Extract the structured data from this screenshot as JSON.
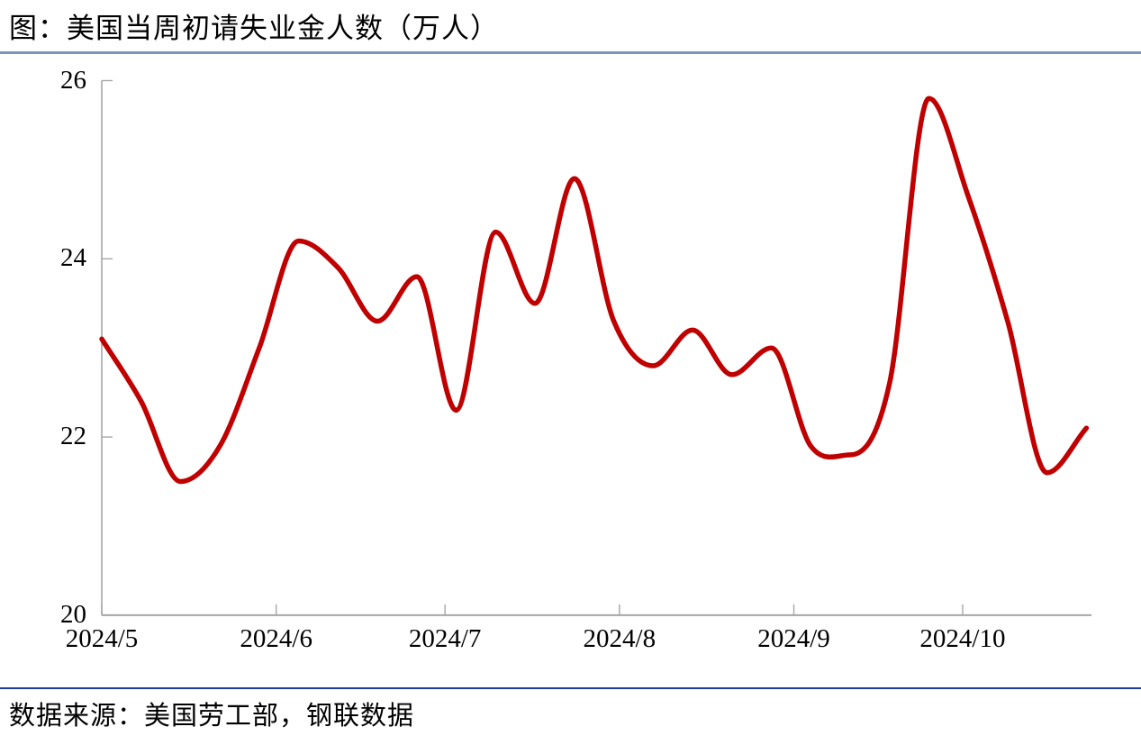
{
  "page": {
    "title": "图：美国当周初请失业金人数（万人）",
    "source_note": "数据来源：美国劳工部，钢联数据"
  },
  "chart_data": {
    "type": "line",
    "title": "美国当周初请失业金人数（万人）",
    "unit": "万人",
    "line_style": "smooth",
    "grid": false,
    "legend_position": "none",
    "ylim": [
      20,
      26
    ],
    "yticks": [
      26,
      24,
      22,
      20
    ],
    "xticks": [
      "2024/5",
      "2024/6",
      "2024/7",
      "2024/8",
      "2024/9",
      "2024/10"
    ],
    "x": [
      "2024/5/1",
      "2024/5/8",
      "2024/5/15",
      "2024/5/22",
      "2024/5/29",
      "2024/6/5",
      "2024/6/12",
      "2024/6/19",
      "2024/6/26",
      "2024/7/3",
      "2024/7/10",
      "2024/7/17",
      "2024/7/24",
      "2024/7/31",
      "2024/8/7",
      "2024/8/14",
      "2024/8/21",
      "2024/8/28",
      "2024/9/4",
      "2024/9/11",
      "2024/9/18",
      "2024/9/25",
      "2024/10/2",
      "2024/10/9",
      "2024/10/16",
      "2024/10/23"
    ],
    "series": [
      {
        "name": "美国当周初请失业金人数（万人）",
        "color": "#C00000",
        "values": [
          23.1,
          22.4,
          21.5,
          21.9,
          23.0,
          24.2,
          23.9,
          23.3,
          23.8,
          22.3,
          24.3,
          23.5,
          24.9,
          23.3,
          22.8,
          23.2,
          22.7,
          23.0,
          21.9,
          21.8,
          22.6,
          25.8,
          24.7,
          23.3,
          21.6,
          22.1
        ]
      }
    ]
  },
  "colors": {
    "line": "#C00000",
    "top_rule": "#7D94BF",
    "bottom_rule": "#1E3C96",
    "axis": "#A6A6A6",
    "text": "#000000"
  }
}
